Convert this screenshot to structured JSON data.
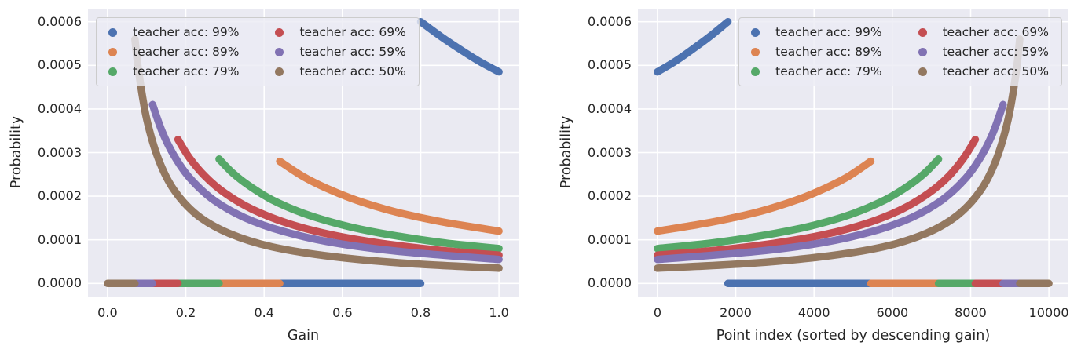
{
  "figure": {
    "background": "#ffffff",
    "panel_background": "#eaeaf2",
    "grid_color": "#ffffff",
    "text_color": "#262626",
    "legend_background": "rgba(236,236,244,0.82)",
    "legend_border": "#cccccc",
    "palette": {
      "blue": "#4c72b0",
      "orange": "#dd8452",
      "green": "#55a868",
      "red": "#c44e52",
      "purple": "#8172b3",
      "brown": "#937860"
    }
  },
  "legend": {
    "entries": [
      {
        "label": "teacher acc: 99%",
        "color": "#4c72b0"
      },
      {
        "label": "teacher acc: 89%",
        "color": "#dd8452"
      },
      {
        "label": "teacher acc: 79%",
        "color": "#55a868"
      },
      {
        "label": "teacher acc: 69%",
        "color": "#c44e52"
      },
      {
        "label": "teacher acc: 59%",
        "color": "#8172b3"
      },
      {
        "label": "teacher acc: 50%",
        "color": "#937860"
      }
    ]
  },
  "chart_data": [
    {
      "type": "scatter",
      "title": "",
      "xlabel": "Gain",
      "ylabel": "Probability",
      "xlim": [
        -0.05,
        1.05
      ],
      "ylim": [
        -3e-05,
        0.00063
      ],
      "grid": true,
      "legend_position": "upper left",
      "xtick_values": [
        0.0,
        0.2,
        0.4,
        0.6,
        0.8,
        1.0
      ],
      "xtick_labels": [
        "0.0",
        "0.2",
        "0.4",
        "0.6",
        "0.8",
        "1.0"
      ],
      "ytick_values": [
        0.0,
        0.0001,
        0.0002,
        0.0003,
        0.0004,
        0.0005,
        0.0006
      ],
      "ytick_labels": [
        "0.0000",
        "0.0001",
        "0.0002",
        "0.0003",
        "0.0004",
        "0.0005",
        "0.0006"
      ],
      "series": [
        {
          "name": "teacher acc: 99%",
          "color": "#4c72b0",
          "points": [
            [
              0.8,
              0.0006
            ],
            [
              0.85,
              0.000567
            ],
            [
              0.9,
              0.000537
            ],
            [
              0.95,
              0.000509
            ],
            [
              1.0,
              0.000485
            ]
          ],
          "zero_band": [
            0.44,
            0.8
          ]
        },
        {
          "name": "teacher acc: 89%",
          "color": "#dd8452",
          "points": [
            [
              0.44,
              0.00028
            ],
            [
              0.5,
              0.000245
            ],
            [
              0.56,
              0.000218
            ],
            [
              0.62,
              0.000196
            ],
            [
              0.68,
              0.000178
            ],
            [
              0.74,
              0.000163
            ],
            [
              0.8,
              0.000151
            ],
            [
              0.88,
              0.000137
            ],
            [
              1.0,
              0.00012
            ]
          ],
          "zero_band": [
            0.285,
            0.44
          ]
        },
        {
          "name": "teacher acc: 79%",
          "color": "#55a868",
          "points": [
            [
              0.285,
              0.000285
            ],
            [
              0.32,
              0.000253
            ],
            [
              0.36,
              0.000225
            ],
            [
              0.42,
              0.000192
            ],
            [
              0.5,
              0.000161
            ],
            [
              0.6,
              0.000134
            ],
            [
              0.7,
              0.000115
            ],
            [
              0.85,
              9.4e-05
            ],
            [
              1.0,
              8e-05
            ]
          ],
          "zero_band": [
            0.18,
            0.285
          ]
        },
        {
          "name": "teacher acc: 69%",
          "color": "#c44e52",
          "points": [
            [
              0.18,
              0.00033
            ],
            [
              0.21,
              0.000287
            ],
            [
              0.25,
              0.000245
            ],
            [
              0.3,
              0.000207
            ],
            [
              0.37,
              0.00017
            ],
            [
              0.46,
              0.000138
            ],
            [
              0.57,
              0.000112
            ],
            [
              0.7,
              9.2e-05
            ],
            [
              0.85,
              7.6e-05
            ],
            [
              1.0,
              6.5e-05
            ]
          ],
          "zero_band": [
            0.115,
            0.18
          ]
        },
        {
          "name": "teacher acc: 59%",
          "color": "#8172b3",
          "points": [
            [
              0.115,
              0.00041
            ],
            [
              0.14,
              0.000347
            ],
            [
              0.17,
              0.000293
            ],
            [
              0.21,
              0.000242
            ],
            [
              0.27,
              0.000192
            ],
            [
              0.35,
              0.000151
            ],
            [
              0.45,
              0.000119
            ],
            [
              0.58,
              9.3e-05
            ],
            [
              0.75,
              7.3e-05
            ],
            [
              1.0,
              5.5e-05
            ]
          ],
          "zero_band": [
            0.07,
            0.115
          ]
        },
        {
          "name": "teacher acc: 50%",
          "color": "#937860",
          "points": [
            [
              0.07,
              0.00056
            ],
            [
              0.08,
              0.000482
            ],
            [
              0.1,
              0.000377
            ],
            [
              0.13,
              0.000285
            ],
            [
              0.17,
              0.000214
            ],
            [
              0.23,
              0.000156
            ],
            [
              0.31,
              0.000115
            ],
            [
              0.42,
              8.4e-05
            ],
            [
              0.58,
              6.1e-05
            ],
            [
              0.78,
              4.5e-05
            ],
            [
              1.0,
              3.5e-05
            ]
          ],
          "zero_band": [
            0.0,
            0.07
          ]
        }
      ]
    },
    {
      "type": "scatter",
      "title": "",
      "xlabel": "Point index (sorted by descending gain)",
      "ylabel": "Probability",
      "xlim": [
        -500,
        10500
      ],
      "ylim": [
        -3e-05,
        0.00063
      ],
      "grid": true,
      "legend_position": "upper right",
      "xtick_values": [
        0,
        2000,
        4000,
        6000,
        8000,
        10000
      ],
      "xtick_labels": [
        "0",
        "2000",
        "4000",
        "6000",
        "8000",
        "10000"
      ],
      "ytick_values": [
        0.0,
        0.0001,
        0.0002,
        0.0003,
        0.0004,
        0.0005,
        0.0006
      ],
      "ytick_labels": [
        "0.0000",
        "0.0001",
        "0.0002",
        "0.0003",
        "0.0004",
        "0.0005",
        "0.0006"
      ],
      "series": [
        {
          "name": "teacher acc: 99%",
          "color": "#4c72b0",
          "points": [
            [
              0,
              0.000485
            ],
            [
              450,
              0.000509
            ],
            [
              900,
              0.000537
            ],
            [
              1350,
              0.000567
            ],
            [
              1800,
              0.0006
            ]
          ],
          "zero_band": [
            1800,
            5450
          ]
        },
        {
          "name": "teacher acc: 89%",
          "color": "#dd8452",
          "points": [
            [
              0,
              0.00012
            ],
            [
              1170,
              0.000137
            ],
            [
              1950,
              0.000151
            ],
            [
              2530,
              0.000163
            ],
            [
              3110,
              0.000178
            ],
            [
              3700,
              0.000196
            ],
            [
              4280,
              0.000218
            ],
            [
              4870,
              0.000245
            ],
            [
              5450,
              0.00028
            ]
          ],
          "zero_band": [
            5450,
            7180
          ]
        },
        {
          "name": "teacher acc: 79%",
          "color": "#55a868",
          "points": [
            [
              0,
              8e-05
            ],
            [
              1510,
              9.4e-05
            ],
            [
              3010,
              0.000115
            ],
            [
              4020,
              0.000134
            ],
            [
              5020,
              0.000161
            ],
            [
              5820,
              0.000192
            ],
            [
              6430,
              0.000225
            ],
            [
              6830,
              0.000253
            ],
            [
              7180,
              0.000285
            ]
          ],
          "zero_band": [
            7180,
            8120
          ]
        },
        {
          "name": "teacher acc: 69%",
          "color": "#c44e52",
          "points": [
            [
              0,
              6.5e-05
            ],
            [
              1490,
              7.6e-05
            ],
            [
              2970,
              9.2e-05
            ],
            [
              4260,
              0.000112
            ],
            [
              5350,
              0.000138
            ],
            [
              6240,
              0.00017
            ],
            [
              6930,
              0.000207
            ],
            [
              7430,
              0.000245
            ],
            [
              7820,
              0.000287
            ],
            [
              8120,
              0.00033
            ]
          ],
          "zero_band": [
            8120,
            8830
          ]
        },
        {
          "name": "teacher acc: 59%",
          "color": "#8172b3",
          "points": [
            [
              0,
              5.5e-05
            ],
            [
              2490,
              7.3e-05
            ],
            [
              4190,
              9.3e-05
            ],
            [
              5490,
              0.000119
            ],
            [
              6490,
              0.000151
            ],
            [
              7280,
              0.000192
            ],
            [
              7880,
              0.000242
            ],
            [
              8280,
              0.000293
            ],
            [
              8580,
              0.000347
            ],
            [
              8830,
              0.00041
            ]
          ],
          "zero_band": [
            8830,
            9255
          ]
        },
        {
          "name": "teacher acc: 50%",
          "color": "#937860",
          "points": [
            [
              0,
              3.5e-05
            ],
            [
              2190,
              4.5e-05
            ],
            [
              4180,
              6.1e-05
            ],
            [
              5770,
              8.4e-05
            ],
            [
              6870,
              0.000115
            ],
            [
              7660,
              0.000156
            ],
            [
              8260,
              0.000214
            ],
            [
              8660,
              0.000285
            ],
            [
              8960,
              0.000377
            ],
            [
              9160,
              0.000482
            ],
            [
              9255,
              0.00056
            ]
          ],
          "zero_band": [
            9255,
            10000
          ]
        }
      ]
    }
  ]
}
